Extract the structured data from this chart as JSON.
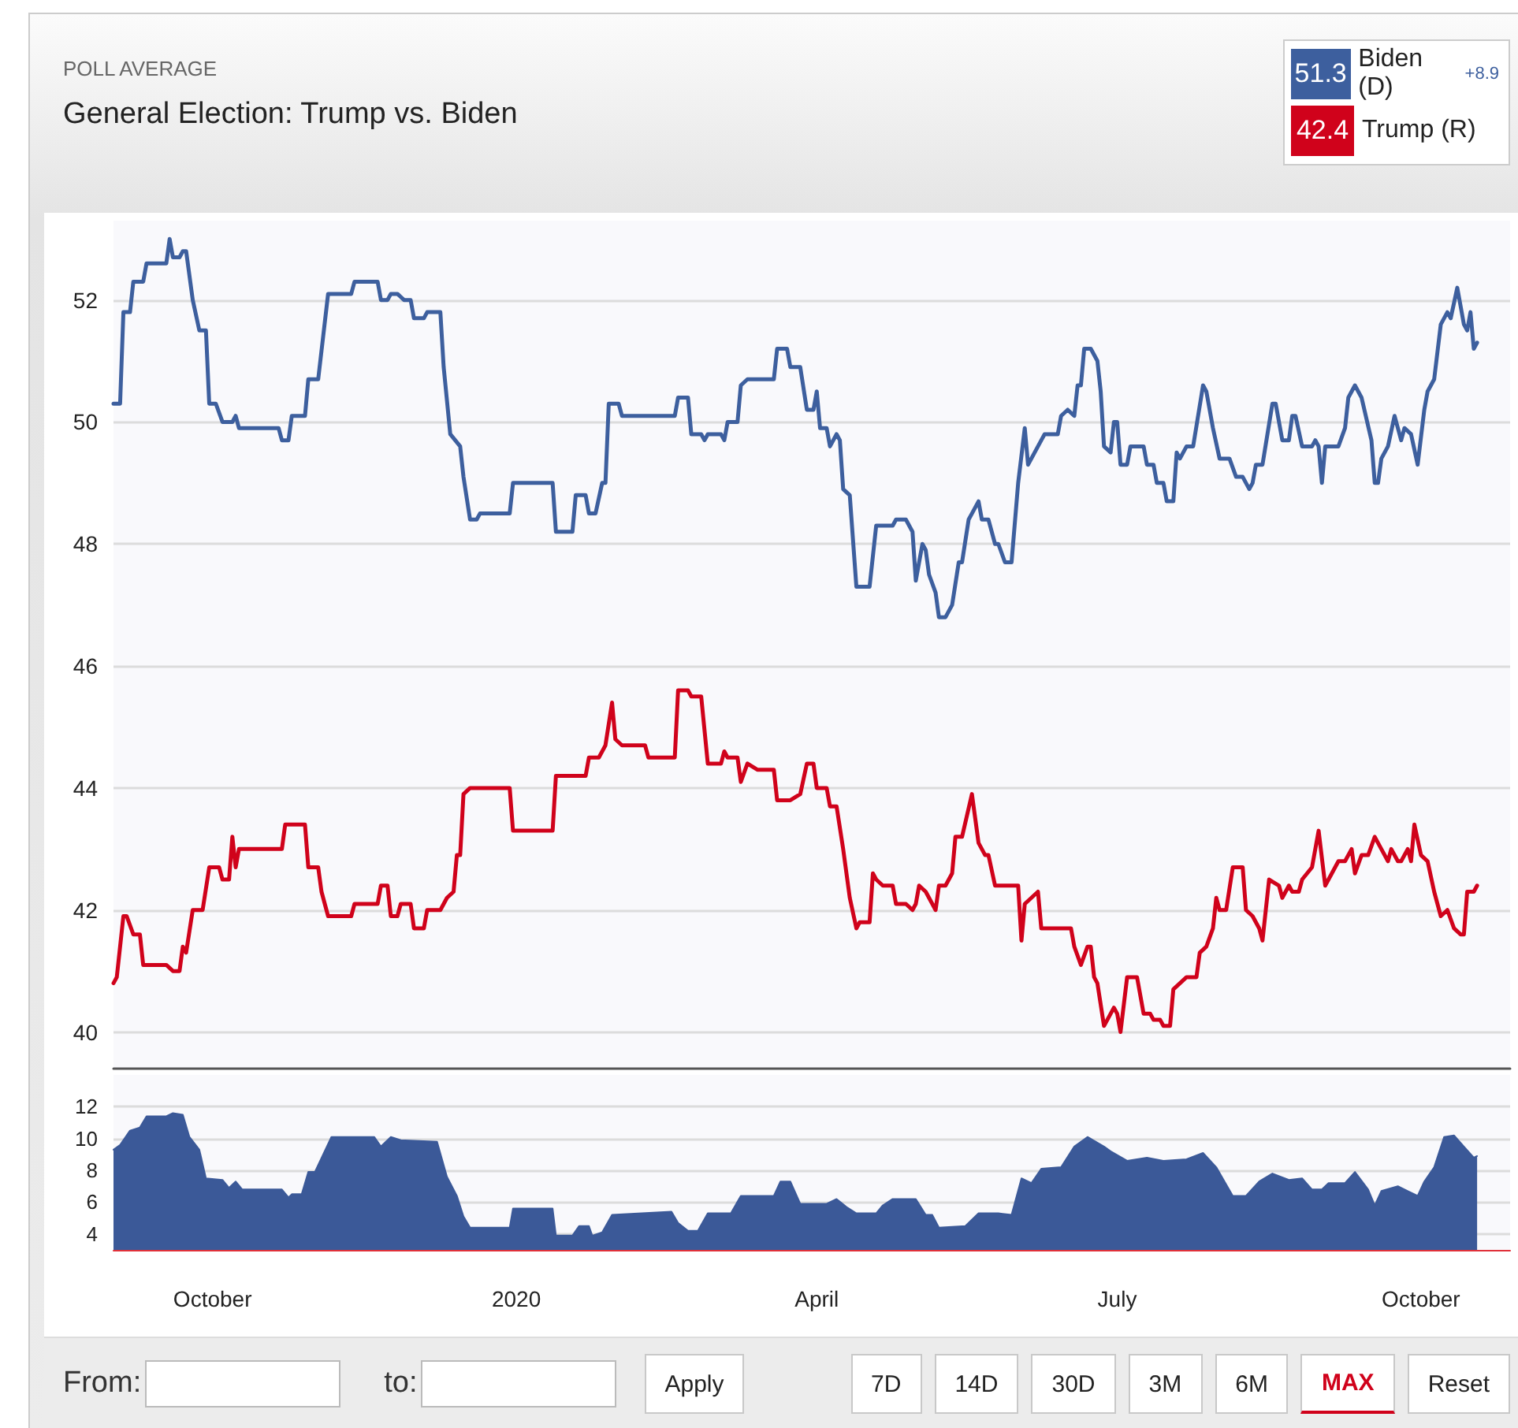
{
  "chart_data": [
    {
      "type": "line",
      "title": "General Election: Trump vs. Biden",
      "subtitle": "POLL AVERAGE",
      "legend": "top right",
      "grid": "y",
      "marker": "none",
      "tick_labels": "y",
      "xlim": [
        "2019-09-01",
        "2020-10-28"
      ],
      "ylim": [
        39.4,
        53.3
      ],
      "yticks": [
        40,
        42,
        44,
        46,
        48,
        50,
        52
      ],
      "annotations": [
        "51.3",
        "42.4",
        "+8.9"
      ],
      "series": [
        {
          "name": "Biden (D)",
          "color": "#3d5f9e",
          "x": [
            "2019-09-01",
            "2019-09-03",
            "2019-09-04",
            "2019-09-06",
            "2019-09-07",
            "2019-09-10",
            "2019-09-11",
            "2019-09-17",
            "2019-09-18",
            "2019-09-19",
            "2019-09-21",
            "2019-09-22",
            "2019-09-23",
            "2019-09-25",
            "2019-09-27",
            "2019-09-29",
            "2019-09-30",
            "2019-10-02",
            "2019-10-04",
            "2019-10-07",
            "2019-10-08",
            "2019-10-09",
            "2019-10-21",
            "2019-10-22",
            "2019-10-24",
            "2019-10-25",
            "2019-10-29",
            "2019-10-30",
            "2019-11-02",
            "2019-11-05",
            "2019-11-12",
            "2019-11-13",
            "2019-11-20",
            "2019-11-21",
            "2019-11-23",
            "2019-11-24",
            "2019-11-26",
            "2019-11-28",
            "2019-11-30",
            "2019-12-01",
            "2019-12-04",
            "2019-12-05",
            "2019-12-09",
            "2019-12-10",
            "2019-12-12",
            "2019-12-15",
            "2019-12-16",
            "2019-12-18",
            "2019-12-20",
            "2019-12-21",
            "2019-12-30",
            "2019-12-31",
            "2020-01-12",
            "2020-01-13",
            "2020-01-18",
            "2020-01-19",
            "2020-01-22",
            "2020-01-23",
            "2020-01-25",
            "2020-01-27",
            "2020-01-28",
            "2020-01-29",
            "2020-02-01",
            "2020-02-02",
            "2020-02-18",
            "2020-02-19",
            "2020-02-22",
            "2020-02-23",
            "2020-02-26",
            "2020-02-27",
            "2020-02-28",
            "2020-03-03",
            "2020-03-04",
            "2020-03-05",
            "2020-03-08",
            "2020-03-09",
            "2020-03-11",
            "2020-03-19",
            "2020-03-20",
            "2020-03-23",
            "2020-03-24",
            "2020-03-27",
            "2020-03-29",
            "2020-03-31",
            "2020-04-01",
            "2020-04-02",
            "2020-04-04",
            "2020-04-05",
            "2020-04-07",
            "2020-04-08",
            "2020-04-09",
            "2020-04-11",
            "2020-04-13",
            "2020-04-17",
            "2020-04-19",
            "2020-04-24",
            "2020-04-25",
            "2020-04-28",
            "2020-04-30",
            "2020-05-01",
            "2020-05-03",
            "2020-05-04",
            "2020-05-05",
            "2020-05-07",
            "2020-05-08",
            "2020-05-10",
            "2020-05-12",
            "2020-05-14",
            "2020-05-15",
            "2020-05-17",
            "2020-05-18",
            "2020-05-20",
            "2020-05-21",
            "2020-05-23",
            "2020-05-25",
            "2020-05-26",
            "2020-05-28",
            "2020-05-30",
            "2020-06-01",
            "2020-06-03",
            "2020-06-04",
            "2020-06-06",
            "2020-06-08",
            "2020-06-09",
            "2020-06-13",
            "2020-06-14",
            "2020-06-16",
            "2020-06-18",
            "2020-06-19",
            "2020-06-20",
            "2020-06-21",
            "2020-06-23",
            "2020-06-25",
            "2020-06-26",
            "2020-06-27",
            "2020-06-29",
            "2020-06-30",
            "2020-07-01",
            "2020-07-02",
            "2020-07-04",
            "2020-07-05",
            "2020-07-09",
            "2020-07-10",
            "2020-07-12",
            "2020-07-13",
            "2020-07-15",
            "2020-07-16",
            "2020-07-18",
            "2020-07-19",
            "2020-07-20",
            "2020-07-22",
            "2020-07-24",
            "2020-07-27",
            "2020-07-28",
            "2020-07-30",
            "2020-08-01",
            "2020-08-04",
            "2020-08-06",
            "2020-08-08",
            "2020-08-10",
            "2020-08-11",
            "2020-08-12",
            "2020-08-14",
            "2020-08-17",
            "2020-08-18",
            "2020-08-20",
            "2020-08-22",
            "2020-08-23",
            "2020-08-24",
            "2020-08-26",
            "2020-08-29",
            "2020-08-30",
            "2020-08-31",
            "2020-09-01",
            "2020-09-02",
            "2020-09-06",
            "2020-09-08",
            "2020-09-09",
            "2020-09-11",
            "2020-09-13",
            "2020-09-16",
            "2020-09-17",
            "2020-09-18",
            "2020-09-19",
            "2020-09-21",
            "2020-09-23",
            "2020-09-25",
            "2020-09-26",
            "2020-09-28",
            "2020-09-30",
            "2020-10-02",
            "2020-10-03",
            "2020-10-05",
            "2020-10-07",
            "2020-10-09",
            "2020-10-10",
            "2020-10-12",
            "2020-10-14",
            "2020-10-15",
            "2020-10-16",
            "2020-10-17",
            "2020-10-18"
          ],
          "values": [
            50.3,
            50.3,
            51.8,
            51.8,
            52.3,
            52.3,
            52.6,
            52.6,
            53.0,
            52.7,
            52.7,
            52.8,
            52.8,
            52.0,
            51.5,
            51.5,
            50.3,
            50.3,
            50.0,
            50.0,
            50.1,
            49.9,
            49.9,
            49.7,
            49.7,
            50.1,
            50.1,
            50.7,
            50.7,
            52.1,
            52.1,
            52.3,
            52.3,
            52.0,
            52.0,
            52.1,
            52.1,
            52.0,
            52.0,
            51.7,
            51.7,
            51.8,
            51.8,
            50.9,
            49.8,
            49.6,
            49.1,
            48.4,
            48.4,
            48.5,
            48.5,
            49.0,
            49.0,
            48.2,
            48.2,
            48.8,
            48.8,
            48.5,
            48.5,
            49.0,
            49.0,
            50.3,
            50.3,
            50.1,
            50.1,
            50.4,
            50.4,
            49.8,
            49.8,
            49.7,
            49.8,
            49.8,
            49.7,
            50.0,
            50.0,
            50.6,
            50.7,
            50.7,
            51.2,
            51.2,
            50.9,
            50.9,
            50.2,
            50.2,
            50.5,
            49.9,
            49.9,
            49.6,
            49.8,
            49.7,
            48.9,
            48.8,
            47.3,
            47.3,
            48.3,
            48.3,
            48.4,
            48.4,
            48.2,
            47.4,
            48.0,
            47.9,
            47.5,
            47.2,
            46.8,
            46.8,
            47.0,
            47.7,
            47.7,
            48.4,
            48.5,
            48.7,
            48.4,
            48.4,
            48.0,
            48.0,
            47.7,
            47.7,
            49.0,
            49.9,
            49.3,
            49.5,
            49.7,
            49.8,
            49.8,
            50.1,
            50.2,
            50.1,
            50.6,
            50.6,
            51.2,
            51.2,
            51.0,
            50.5,
            49.6,
            49.5,
            50.0,
            50.0,
            49.3,
            49.3,
            49.6,
            49.6,
            49.3,
            49.3,
            49.0,
            49.0,
            48.7,
            48.7,
            49.5,
            49.4,
            49.6,
            49.6,
            50.6,
            50.5,
            49.9,
            49.4,
            49.4,
            49.1,
            49.1,
            48.9,
            49.0,
            49.3,
            49.3,
            50.3,
            50.3,
            49.7,
            49.7,
            50.1,
            50.1,
            49.6,
            49.6,
            49.7,
            49.6,
            49.0,
            49.6,
            49.6,
            49.9,
            50.4,
            50.6,
            50.4,
            49.7,
            49.0,
            49.0,
            49.4,
            49.6,
            50.1,
            49.7,
            49.9,
            49.8,
            49.3,
            50.2,
            50.5,
            50.7,
            51.6,
            51.8,
            51.7,
            52.2,
            51.6,
            51.5,
            51.8,
            51.2,
            51.3
          ]
        },
        {
          "name": "Trump (R)",
          "color": "#d0021b",
          "x": [
            "2019-09-01",
            "2019-09-02",
            "2019-09-04",
            "2019-09-05",
            "2019-09-07",
            "2019-09-09",
            "2019-09-10",
            "2019-09-17",
            "2019-09-19",
            "2019-09-21",
            "2019-09-22",
            "2019-09-23",
            "2019-09-25",
            "2019-09-28",
            "2019-09-30",
            "2019-10-03",
            "2019-10-04",
            "2019-10-06",
            "2019-10-07",
            "2019-10-08",
            "2019-10-09",
            "2019-10-22",
            "2019-10-23",
            "2019-10-29",
            "2019-10-30",
            "2019-11-02",
            "2019-11-03",
            "2019-11-05",
            "2019-11-12",
            "2019-11-13",
            "2019-11-20",
            "2019-11-21",
            "2019-11-23",
            "2019-11-24",
            "2019-11-26",
            "2019-11-27",
            "2019-11-30",
            "2019-12-01",
            "2019-12-04",
            "2019-12-05",
            "2019-12-09",
            "2019-12-11",
            "2019-12-13",
            "2019-12-14",
            "2019-12-15",
            "2019-12-16",
            "2019-12-18",
            "2019-12-30",
            "2019-12-31",
            "2020-01-12",
            "2020-01-13",
            "2020-01-22",
            "2020-01-23",
            "2020-01-26",
            "2020-01-28",
            "2020-01-30",
            "2020-01-31",
            "2020-02-02",
            "2020-02-09",
            "2020-02-10",
            "2020-02-18",
            "2020-02-19",
            "2020-02-22",
            "2020-02-23",
            "2020-02-26",
            "2020-02-28",
            "2020-03-03",
            "2020-03-04",
            "2020-03-05",
            "2020-03-08",
            "2020-03-09",
            "2020-03-11",
            "2020-03-14",
            "2020-03-19",
            "2020-03-20",
            "2020-03-24",
            "2020-03-27",
            "2020-03-29",
            "2020-03-31",
            "2020-04-01",
            "2020-04-04",
            "2020-04-05",
            "2020-04-07",
            "2020-04-09",
            "2020-04-11",
            "2020-04-13",
            "2020-04-14",
            "2020-04-17",
            "2020-04-18",
            "2020-04-19",
            "2020-04-21",
            "2020-04-24",
            "2020-04-25",
            "2020-04-28",
            "2020-04-30",
            "2020-05-01",
            "2020-05-02",
            "2020-05-04",
            "2020-05-07",
            "2020-05-08",
            "2020-05-10",
            "2020-05-12",
            "2020-05-13",
            "2020-05-15",
            "2020-05-18",
            "2020-05-20",
            "2020-05-22",
            "2020-05-23",
            "2020-05-25",
            "2020-06-01",
            "2020-06-02",
            "2020-06-03",
            "2020-06-05",
            "2020-06-07",
            "2020-06-08",
            "2020-06-17",
            "2020-06-18",
            "2020-06-20",
            "2020-06-22",
            "2020-06-23",
            "2020-06-24",
            "2020-06-25",
            "2020-06-27",
            "2020-06-28",
            "2020-06-30",
            "2020-07-01",
            "2020-07-02",
            "2020-07-04",
            "2020-07-07",
            "2020-07-09",
            "2020-07-11",
            "2020-07-12",
            "2020-07-14",
            "2020-07-15",
            "2020-07-17",
            "2020-07-18",
            "2020-07-20",
            "2020-07-22",
            "2020-07-25",
            "2020-07-26",
            "2020-07-28",
            "2020-07-30",
            "2020-07-31",
            "2020-08-01",
            "2020-08-03",
            "2020-08-05",
            "2020-08-08",
            "2020-08-09",
            "2020-08-11",
            "2020-08-13",
            "2020-08-14",
            "2020-08-16",
            "2020-08-19",
            "2020-08-20",
            "2020-08-22",
            "2020-08-23",
            "2020-08-25",
            "2020-08-26",
            "2020-08-29",
            "2020-08-31",
            "2020-09-02",
            "2020-09-04",
            "2020-09-06",
            "2020-09-08",
            "2020-09-10",
            "2020-09-11",
            "2020-09-13",
            "2020-09-15",
            "2020-09-17",
            "2020-09-19",
            "2020-09-21",
            "2020-09-22",
            "2020-09-24",
            "2020-09-25",
            "2020-09-27",
            "2020-09-28",
            "2020-09-29",
            "2020-10-01",
            "2020-10-03",
            "2020-10-05",
            "2020-10-07",
            "2020-10-09",
            "2020-10-11",
            "2020-10-13",
            "2020-10-14",
            "2020-10-15",
            "2020-10-17",
            "2020-10-18"
          ],
          "values": [
            40.8,
            40.9,
            41.9,
            41.9,
            41.6,
            41.6,
            41.1,
            41.1,
            41.0,
            41.0,
            41.4,
            41.3,
            42.0,
            42.0,
            42.7,
            42.7,
            42.5,
            42.5,
            43.2,
            42.7,
            43.0,
            43.0,
            43.4,
            43.4,
            42.7,
            42.7,
            42.3,
            41.9,
            41.9,
            42.1,
            42.1,
            42.4,
            42.4,
            41.9,
            41.9,
            42.1,
            42.1,
            41.7,
            41.7,
            42.0,
            42.0,
            42.2,
            42.3,
            42.9,
            42.9,
            43.9,
            44.0,
            44.0,
            43.3,
            43.3,
            44.2,
            44.2,
            44.5,
            44.5,
            44.7,
            45.4,
            44.8,
            44.7,
            44.7,
            44.5,
            44.5,
            45.6,
            45.6,
            45.5,
            45.5,
            44.4,
            44.4,
            44.6,
            44.5,
            44.5,
            44.1,
            44.4,
            44.3,
            44.3,
            43.8,
            43.8,
            43.9,
            44.4,
            44.4,
            44.0,
            44.0,
            43.7,
            43.7,
            43.0,
            42.2,
            41.7,
            41.8,
            41.8,
            42.6,
            42.5,
            42.4,
            42.4,
            42.1,
            42.1,
            42.0,
            42.1,
            42.4,
            42.3,
            42.0,
            42.4,
            42.4,
            42.6,
            43.2,
            43.2,
            43.9,
            43.1,
            42.9,
            42.9,
            42.4,
            42.4,
            41.5,
            42.1,
            42.2,
            42.3,
            41.7,
            41.7,
            41.4,
            41.1,
            41.4,
            41.4,
            40.9,
            40.8,
            40.1,
            40.2,
            40.4,
            40.3,
            40.0,
            40.9,
            40.9,
            40.3,
            40.3,
            40.2,
            40.2,
            40.1,
            40.1,
            40.7,
            40.8,
            40.9,
            40.9,
            41.3,
            41.4,
            41.7,
            42.2,
            42.0,
            42.0,
            42.7,
            42.7,
            42.0,
            41.9,
            41.7,
            41.5,
            42.5,
            42.4,
            42.2,
            42.4,
            42.3,
            42.3,
            42.5,
            42.7,
            43.3,
            42.4,
            42.6,
            42.8,
            42.8,
            43.0,
            42.6,
            42.9,
            42.9,
            43.2,
            43.0,
            42.8,
            43.0,
            42.8,
            42.8,
            43.0,
            42.8,
            43.4,
            42.9,
            42.8,
            42.3,
            41.9,
            42.0,
            41.7,
            41.6,
            41.6,
            42.3,
            42.3,
            42.4
          ]
        }
      ]
    },
    {
      "type": "area",
      "grid": "y",
      "marker": "none",
      "xlim": [
        "2019-09-01",
        "2020-10-28"
      ],
      "xticks": [
        {
          "value": "2019-10-01",
          "label": "October"
        },
        {
          "value": "2020-01-01",
          "label": "2020"
        },
        {
          "value": "2020-04-01",
          "label": "April"
        },
        {
          "value": "2020-07-01",
          "label": "July"
        },
        {
          "value": "2020-10-01",
          "label": "October"
        }
      ],
      "ylim": [
        3,
        14
      ],
      "yticks": [
        4,
        6,
        8,
        10,
        12
      ],
      "annotations": [
        "From:",
        "to:",
        "Apply",
        "7D",
        "14D",
        "30D",
        "3M",
        "6M",
        "MAX",
        "Reset"
      ],
      "series": [
        {
          "color": "#3b5998",
          "x": [
            "2019-09-01",
            "2019-09-03",
            "2019-09-06",
            "2019-09-09",
            "2019-09-11",
            "2019-09-17",
            "2019-09-19",
            "2019-09-22",
            "2019-09-24",
            "2019-09-27",
            "2019-09-29",
            "2019-10-04",
            "2019-10-06",
            "2019-10-08",
            "2019-10-10",
            "2019-10-22",
            "2019-10-24",
            "2019-10-25",
            "2019-10-28",
            "2019-10-30",
            "2019-11-01",
            "2019-11-06",
            "2019-11-19",
            "2019-11-21",
            "2019-11-24",
            "2019-11-27",
            "2019-12-08",
            "2019-12-11",
            "2019-12-14",
            "2019-12-16",
            "2019-12-18",
            "2019-12-30",
            "2019-12-31",
            "2020-01-12",
            "2020-01-13",
            "2020-01-18",
            "2020-01-20",
            "2020-01-23",
            "2020-01-24",
            "2020-01-27",
            "2020-01-30",
            "2020-02-17",
            "2020-02-19",
            "2020-02-22",
            "2020-02-25",
            "2020-02-28",
            "2020-03-06",
            "2020-03-09",
            "2020-03-19",
            "2020-03-21",
            "2020-03-24",
            "2020-03-27",
            "2020-04-04",
            "2020-04-07",
            "2020-04-10",
            "2020-04-13",
            "2020-04-19",
            "2020-04-21",
            "2020-04-24",
            "2020-05-01",
            "2020-05-04",
            "2020-05-06",
            "2020-05-08",
            "2020-05-16",
            "2020-05-20",
            "2020-05-26",
            "2020-05-30",
            "2020-06-02",
            "2020-06-05",
            "2020-06-08",
            "2020-06-14",
            "2020-06-18",
            "2020-06-22",
            "2020-06-27",
            "2020-06-29",
            "2020-07-04",
            "2020-07-10",
            "2020-07-15",
            "2020-07-22",
            "2020-07-27",
            "2020-07-31",
            "2020-08-05",
            "2020-08-09",
            "2020-08-13",
            "2020-08-17",
            "2020-08-22",
            "2020-08-26",
            "2020-08-29",
            "2020-09-01",
            "2020-09-03",
            "2020-09-08",
            "2020-09-11",
            "2020-09-15",
            "2020-09-17",
            "2020-09-19",
            "2020-09-24",
            "2020-09-27",
            "2020-09-30",
            "2020-10-02",
            "2020-10-05",
            "2020-10-08",
            "2020-10-11",
            "2020-10-14",
            "2020-10-17",
            "2020-10-18"
          ],
          "values": [
            9.3,
            9.6,
            10.5,
            10.7,
            11.4,
            11.4,
            11.6,
            11.5,
            10.1,
            9.3,
            7.5,
            7.4,
            6.9,
            7.3,
            6.8,
            6.8,
            6.3,
            6.5,
            6.5,
            7.9,
            7.9,
            10.1,
            10.1,
            9.5,
            10.1,
            9.9,
            9.8,
            7.6,
            6.4,
            5.1,
            4.4,
            4.4,
            5.6,
            5.6,
            3.9,
            3.9,
            4.5,
            4.5,
            3.9,
            4.1,
            5.2,
            5.4,
            4.7,
            4.2,
            4.2,
            5.3,
            5.3,
            6.4,
            6.4,
            7.3,
            7.3,
            5.9,
            5.9,
            6.2,
            5.7,
            5.3,
            5.3,
            5.8,
            6.2,
            6.2,
            5.2,
            5.2,
            4.4,
            4.5,
            5.3,
            5.3,
            5.2,
            7.5,
            7.2,
            8.1,
            8.2,
            9.5,
            10.1,
            9.5,
            9.2,
            8.6,
            8.8,
            8.6,
            8.7,
            9.1,
            8.2,
            6.4,
            6.4,
            7.3,
            7.8,
            7.4,
            7.5,
            6.8,
            6.8,
            7.2,
            7.2,
            7.9,
            6.8,
            5.8,
            6.7,
            7.0,
            6.7,
            6.4,
            7.3,
            8.2,
            10.1,
            10.2,
            9.5,
            8.8,
            8.9
          ]
        }
      ]
    }
  ]
}
